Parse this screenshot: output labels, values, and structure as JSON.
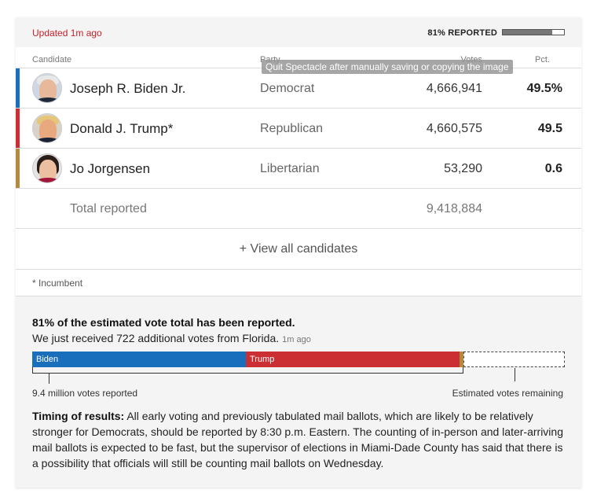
{
  "header": {
    "updated": "Updated 1m ago",
    "reported_label": "81% REPORTED",
    "reported_fraction": 0.81
  },
  "table": {
    "columns": {
      "candidate": "Candidate",
      "party": "Party",
      "votes": "Votes",
      "pct": "Pct."
    },
    "rows": [
      {
        "name": "Joseph R. Biden Jr.",
        "party": "Democrat",
        "votes": "4,666,941",
        "pct": "49.5%",
        "color": "#1a6fbd",
        "avatar": "biden-portrait"
      },
      {
        "name": "Donald J. Trump*",
        "party": "Republican",
        "votes": "4,660,575",
        "pct": "49.5",
        "color": "#cc2f33",
        "avatar": "trump-portrait"
      },
      {
        "name": "Jo Jorgensen",
        "party": "Libertarian",
        "votes": "53,290",
        "pct": "0.6",
        "color": "#b48a3c",
        "avatar": "jorgensen-portrait"
      }
    ],
    "total_label": "Total reported",
    "total_votes": "9,418,884",
    "view_all": "+ View all candidates"
  },
  "footnote": "* Incumbent",
  "estimate": {
    "title": "81% of the estimated vote total has been reported.",
    "subtitle": "We just received 722 additional votes from Florida.",
    "subtitle_ago": "1m ago",
    "bar": {
      "biden_label": "Biden",
      "trump_label": "Trump",
      "biden_fraction": 0.401,
      "trump_fraction": 0.401,
      "other_fraction": 0.008,
      "remaining_fraction": 0.19
    },
    "reported_label": "9.4 million votes reported",
    "remaining_label": "Estimated votes remaining"
  },
  "timing": {
    "lead": "Timing of results:",
    "body": " All early voting and previously tabulated mail ballots, which are likely to be relatively stronger for Democrats, should be reported by 8:30 p.m. Eastern. The counting of in-person and later-arriving mail ballots is expected to be fast, but the supervisor of elections in Miami-Dade County has said that there is a possibility that officials will still be counting mail ballots on Wednesday."
  },
  "tooltip": "Quit Spectacle after manually saving or copying the image"
}
